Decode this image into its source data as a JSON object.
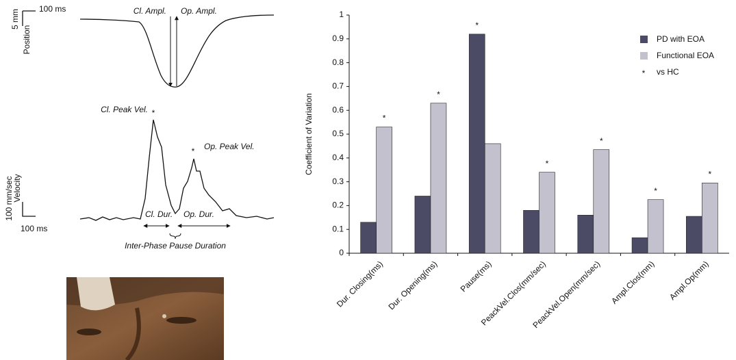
{
  "diagram": {
    "position_time_scale": "100 ms",
    "position_scale": "5 mm",
    "position_label": "Position",
    "cl_ampl": "Cl. Ampl.",
    "op_ampl": "Op. Ampl.",
    "cl_peak_vel": "Cl. Peak Vel.",
    "cl_peak_star": "*",
    "op_peak_vel": "Op. Peak Vel.",
    "op_peak_star": "*",
    "velocity_scale": "100 mm/sec",
    "velocity_label": "Velocity",
    "velocity_time_scale": "100 ms",
    "cl_dur": "Cl. Dur.",
    "op_dur": "Op. Dur.",
    "pause": "Inter-Phase Pause Duration"
  },
  "chart_data": {
    "type": "bar",
    "y_label": "Coefficient of Variation",
    "categories": [
      "Dur. Closing(ms)",
      "Dur. Opening(ms)",
      "Pause(ms)",
      "PeackVel.Clos(mm/sec)",
      "PeackVel.Open(mm/sec)",
      "Ampl.Clos(mm)",
      "Ampl.Op(mm)"
    ],
    "series": [
      {
        "name": "PD with EOA",
        "color": "#4b4b66",
        "values": [
          0.13,
          0.24,
          0.92,
          0.18,
          0.16,
          0.065,
          0.155
        ],
        "asterisks": [
          null,
          null,
          "*",
          null,
          null,
          null,
          null
        ]
      },
      {
        "name": "Functional EOA",
        "color": "#c2c1cd",
        "values": [
          0.53,
          0.63,
          0.46,
          0.34,
          0.435,
          0.225,
          0.295
        ],
        "asterisks": [
          "*",
          "*",
          null,
          "*",
          "*",
          "*",
          "*"
        ]
      }
    ],
    "legend_note": {
      "symbol": "*",
      "text": "vs HC"
    },
    "ylim": [
      0,
      1
    ],
    "yticks": [
      0,
      0.1,
      0.2,
      0.3,
      0.4,
      0.5,
      0.6,
      0.7,
      0.8,
      0.9,
      1
    ],
    "grid": false
  }
}
